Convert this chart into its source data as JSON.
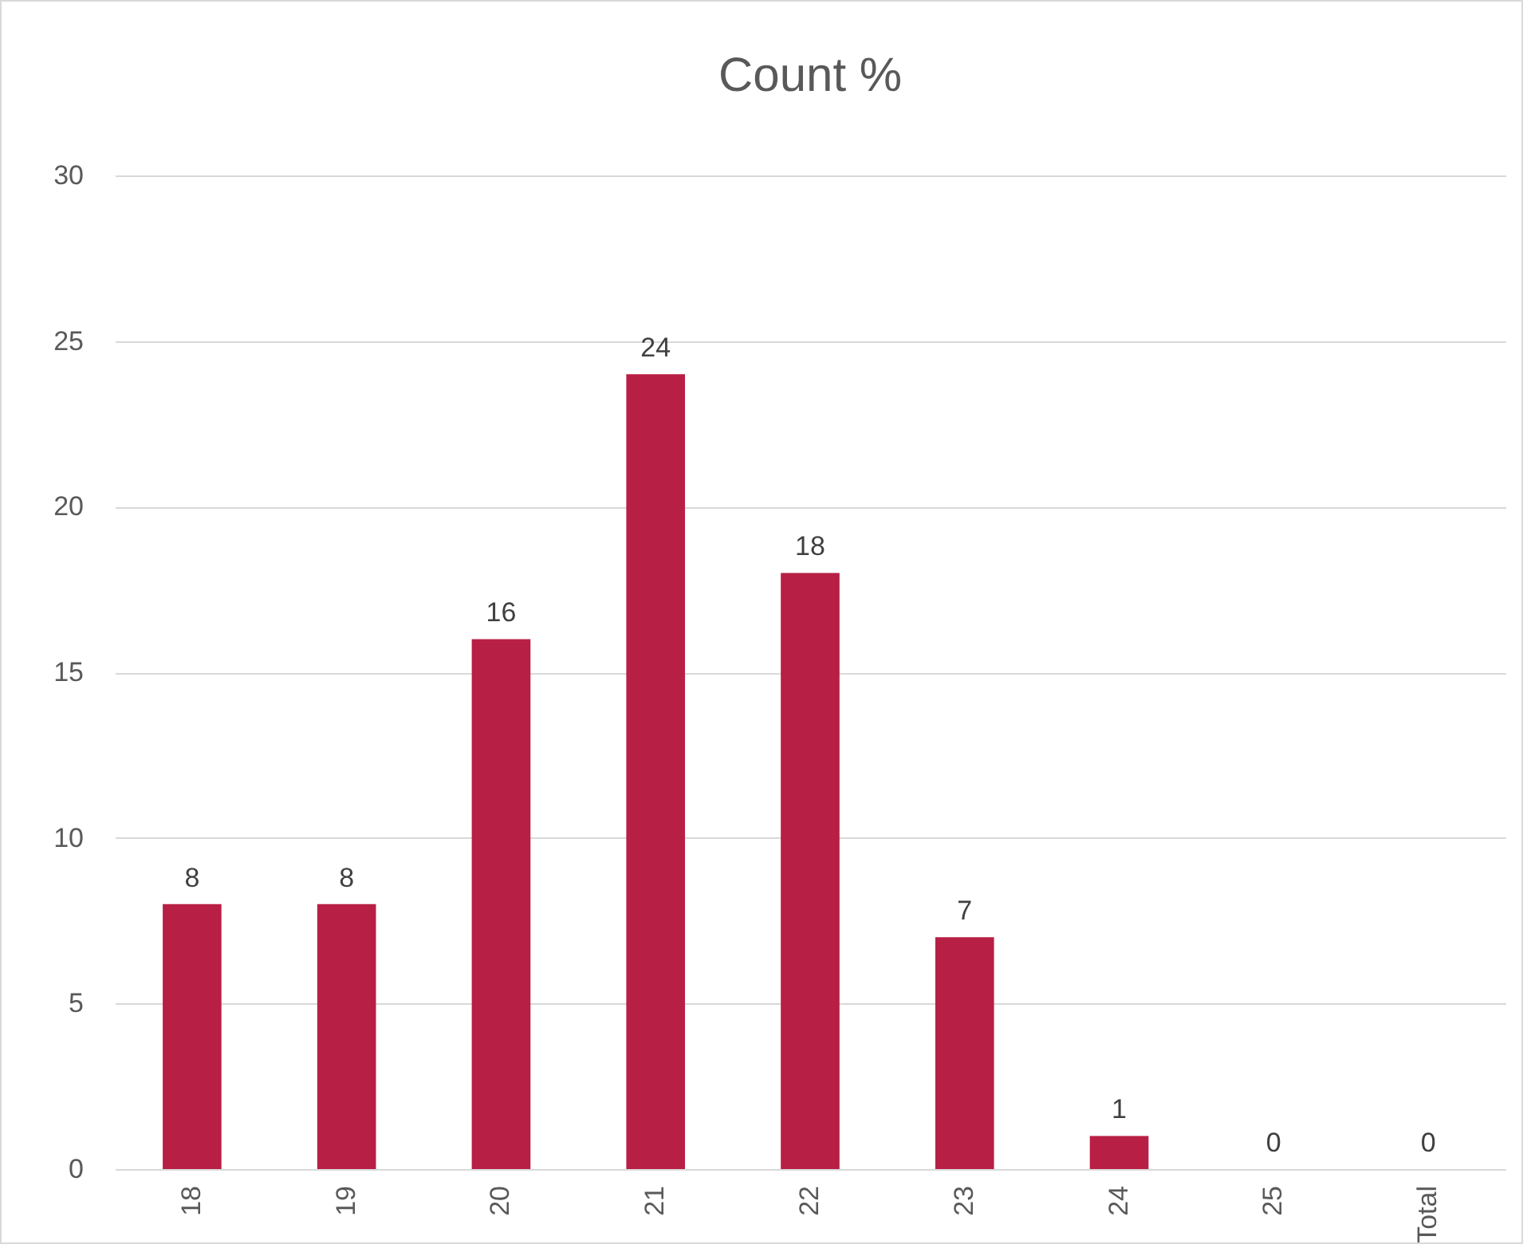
{
  "chart_data": {
    "type": "bar",
    "title": "Count %",
    "categories": [
      "18",
      "19",
      "20",
      "21",
      "22",
      "23",
      "24",
      "25",
      "Total"
    ],
    "values": [
      8,
      8,
      16,
      24,
      18,
      7,
      1,
      0,
      0
    ],
    "color": "#b81f44",
    "ylim": [
      0,
      30
    ],
    "yticks": [
      0,
      5,
      10,
      15,
      20,
      25,
      30
    ],
    "grid": "y",
    "data_labels": true
  }
}
